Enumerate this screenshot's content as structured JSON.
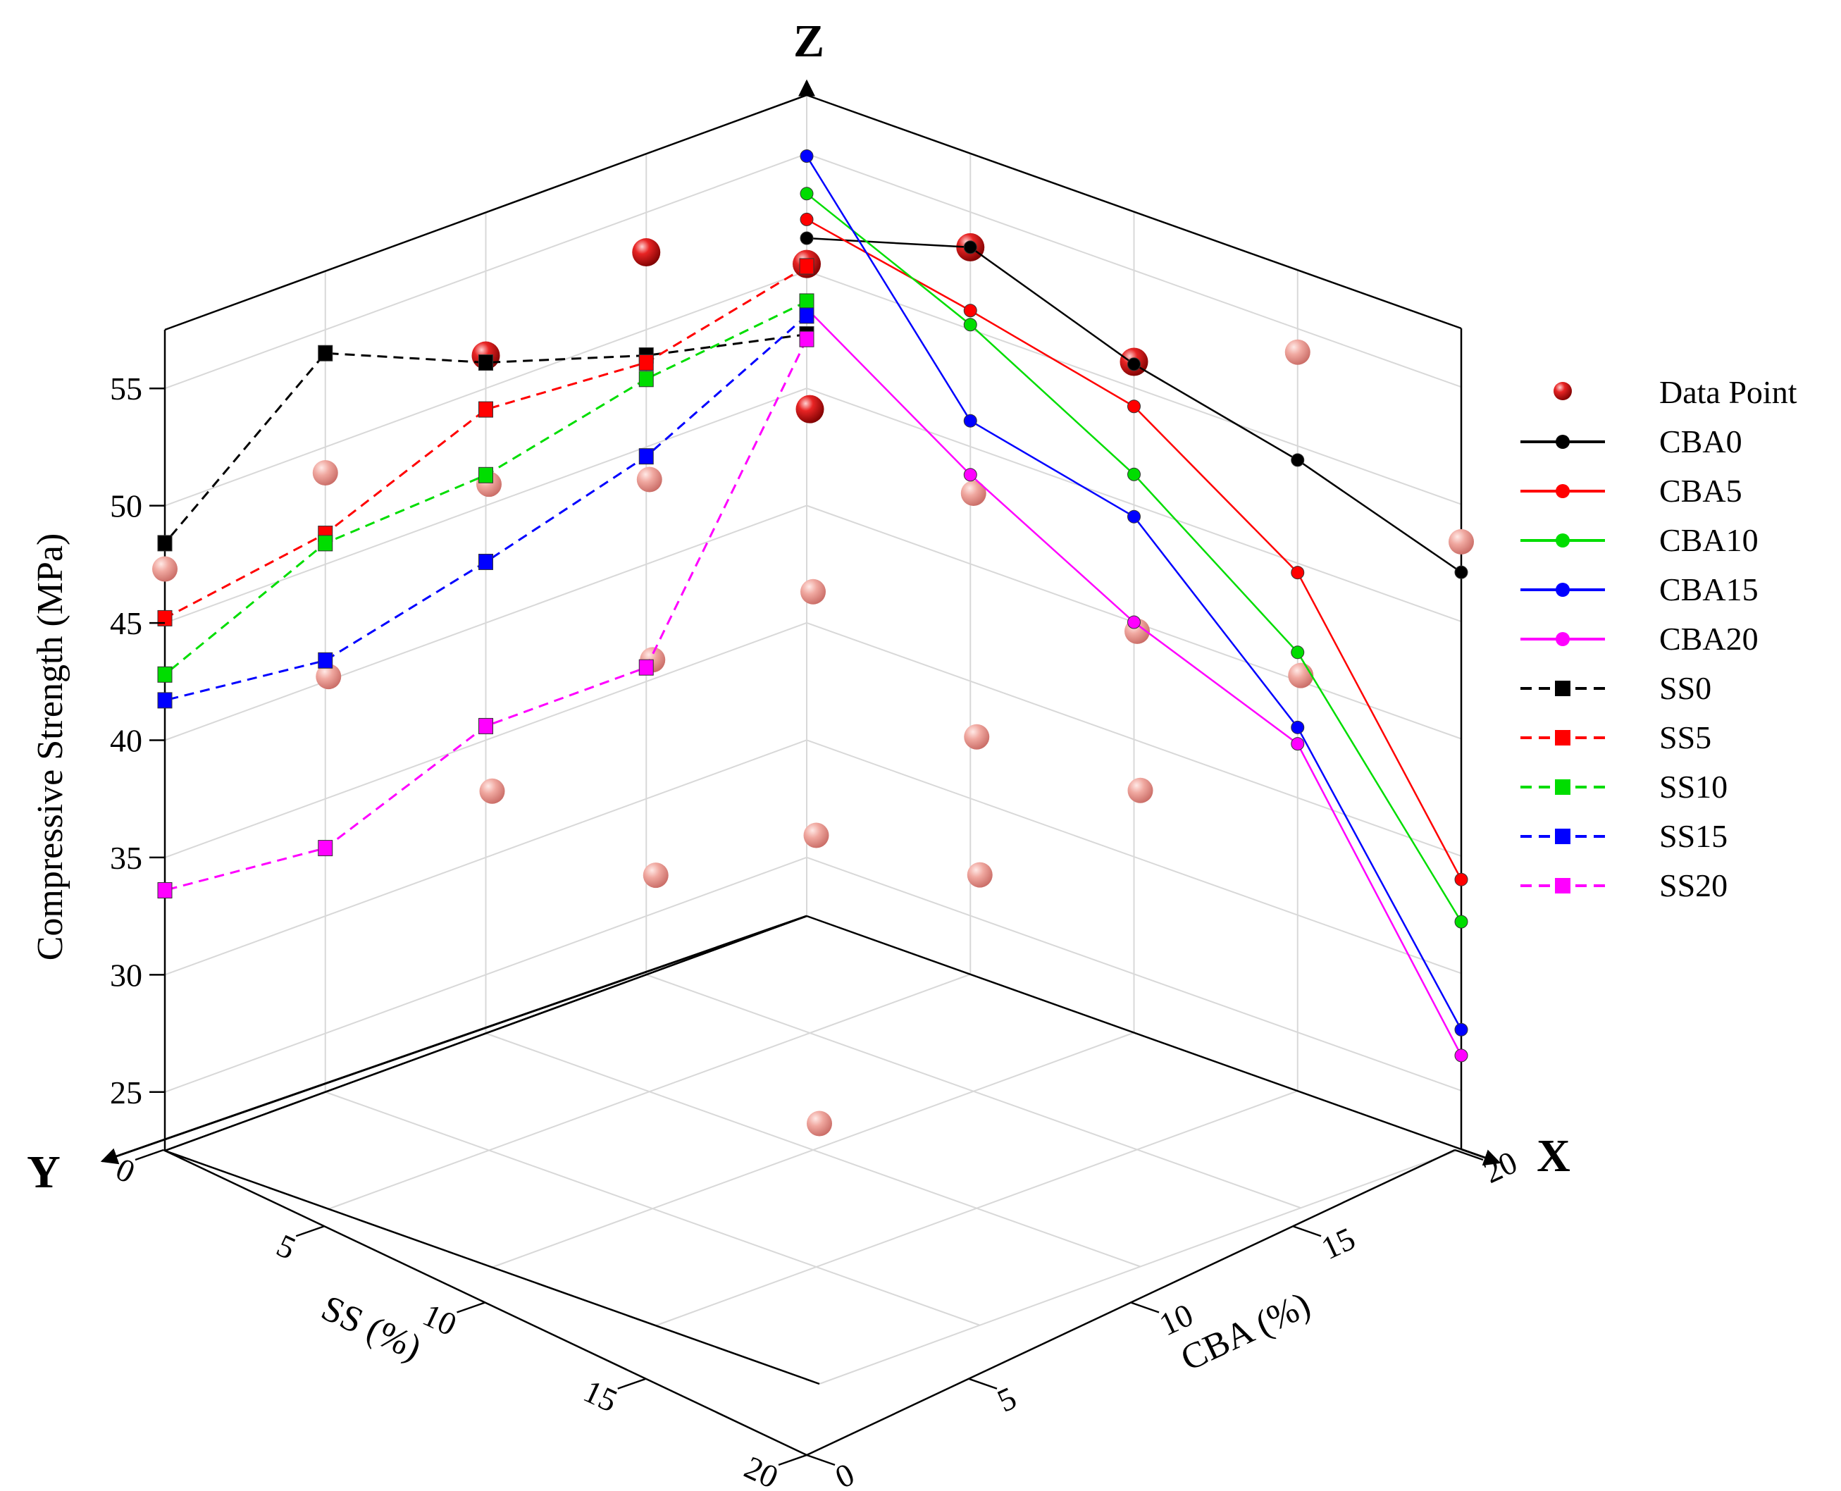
{
  "chart_data": {
    "type": "scatter",
    "subtype": "3d-line-projection",
    "axes": {
      "x": {
        "letter": "X",
        "label": "CBA (%)",
        "ticks": [
          0,
          5,
          10,
          15,
          20
        ],
        "range": [
          0,
          20
        ]
      },
      "y": {
        "letter": "Y",
        "label": "SS (%)",
        "ticks": [
          0,
          5,
          10,
          15,
          20
        ],
        "range": [
          0,
          20
        ]
      },
      "z": {
        "letter": "Z",
        "label": "Compressive Strength (MPa)",
        "ticks": [
          25,
          30,
          35,
          40,
          45,
          50,
          55
        ],
        "range": [
          22.5,
          57.5
        ]
      }
    },
    "grid": true,
    "legend_position": "right",
    "data_point_label": "Data Point",
    "data_point_color": "#e02020",
    "cba_series": {
      "description": "Lines projected on the X-Z wall (strength vs CBA %)",
      "x": [
        0,
        5,
        10,
        15,
        20
      ],
      "series": [
        {
          "name": "CBA0",
          "color": "#000000",
          "values": [
            51.4,
            53.5,
            51.0,
            49.4,
            47.1
          ]
        },
        {
          "name": "CBA5",
          "color": "#ff0000",
          "values": [
            52.2,
            50.8,
            49.2,
            44.6,
            34.0
          ]
        },
        {
          "name": "CBA10",
          "color": "#00dd00",
          "values": [
            53.3,
            50.2,
            46.3,
            41.2,
            32.2
          ]
        },
        {
          "name": "CBA15",
          "color": "#0000ff",
          "values": [
            54.9,
            46.1,
            44.5,
            38.0,
            27.6
          ]
        },
        {
          "name": "CBA20",
          "color": "#ff00ff",
          "values": [
            48.4,
            43.8,
            40.0,
            37.3,
            26.5
          ]
        }
      ]
    },
    "ss_series": {
      "description": "Dashed lines projected on the Y-Z wall (strength vs SS %)",
      "y": [
        0,
        5,
        10,
        15,
        20
      ],
      "series": [
        {
          "name": "SS0",
          "color": "#000000",
          "values": [
            47.3,
            48.9,
            51.1,
            54.0,
            48.4
          ]
        },
        {
          "name": "SS5",
          "color": "#ff0000",
          "values": [
            50.2,
            48.6,
            49.1,
            46.3,
            45.2
          ]
        },
        {
          "name": "SS10",
          "color": "#00dd00",
          "values": [
            48.7,
            47.9,
            46.3,
            45.9,
            42.8
          ]
        },
        {
          "name": "SS15",
          "color": "#0000ff",
          "values": [
            48.1,
            44.6,
            42.6,
            40.9,
            41.7
          ]
        },
        {
          "name": "SS20",
          "color": "#ff00ff",
          "values": [
            47.1,
            35.6,
            35.6,
            32.9,
            33.6
          ]
        }
      ]
    },
    "data_points": [
      {
        "cba": 0,
        "ss": 0,
        "strength": 50.3
      },
      {
        "cba": 0,
        "ss": 5,
        "strength": 53.3
      },
      {
        "cba": 0,
        "ss": 10,
        "strength": 51.4
      },
      {
        "cba": 0,
        "ss": 15,
        "strength": 48.9
      },
      {
        "cba": 0,
        "ss": 20,
        "strength": 47.3
      },
      {
        "cba": 5,
        "ss": 0,
        "strength": 53.5
      },
      {
        "cba": 5,
        "ss": 5,
        "strength": 49.1
      },
      {
        "cba": 5,
        "ss": 10,
        "strength": 48.6
      },
      {
        "cba": 5,
        "ss": 15,
        "strength": 50.9
      },
      {
        "cba": 5,
        "ss": 20,
        "strength": 45.2
      },
      {
        "cba": 10,
        "ss": 0,
        "strength": 51.1
      },
      {
        "cba": 10,
        "ss": 5,
        "strength": 48.0
      },
      {
        "cba": 10,
        "ss": 10,
        "strength": 46.3
      },
      {
        "cba": 10,
        "ss": 15,
        "strength": 45.9
      },
      {
        "cba": 10,
        "ss": 20,
        "strength": 42.8
      },
      {
        "cba": 15,
        "ss": 0,
        "strength": 54.0
      },
      {
        "cba": 15,
        "ss": 5,
        "strength": 44.6
      },
      {
        "cba": 15,
        "ss": 10,
        "strength": 42.6
      },
      {
        "cba": 15,
        "ss": 15,
        "strength": 40.9
      },
      {
        "cba": 15,
        "ss": 20,
        "strength": 41.7
      },
      {
        "cba": 20,
        "ss": 0,
        "strength": 48.4
      },
      {
        "cba": 20,
        "ss": 5,
        "strength": 45.2
      },
      {
        "cba": 20,
        "ss": 10,
        "strength": 42.8
      },
      {
        "cba": 20,
        "ss": 15,
        "strength": 41.7
      },
      {
        "cba": 20,
        "ss": 20,
        "strength": 33.6
      }
    ]
  }
}
